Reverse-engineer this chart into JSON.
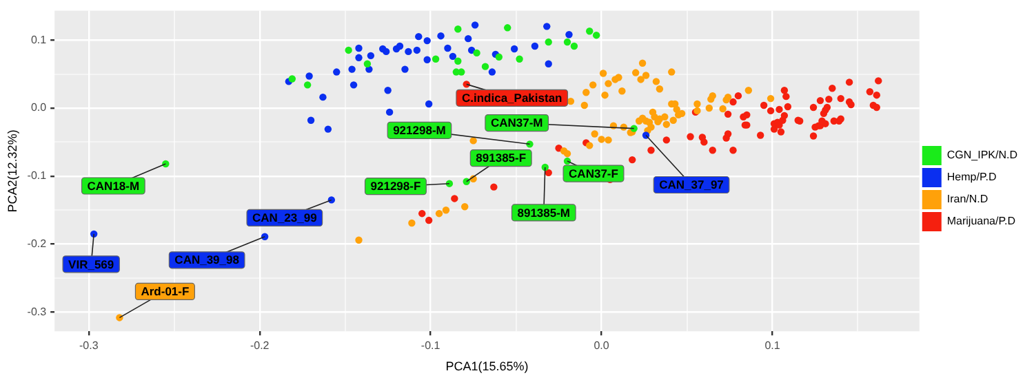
{
  "chart_data": {
    "type": "scatter",
    "xlabel": "PCA1(15.65%)",
    "ylabel": "PCA2(12.32%)",
    "xlim": [
      -0.32,
      0.186
    ],
    "ylim": [
      -0.328,
      0.143
    ],
    "xticks": [
      {
        "value": -0.3,
        "label": "-0.3"
      },
      {
        "value": -0.25,
        "label": null
      },
      {
        "value": -0.2,
        "label": "-0.2"
      },
      {
        "value": -0.15,
        "label": null
      },
      {
        "value": -0.1,
        "label": "-0.1"
      },
      {
        "value": -0.05,
        "label": null
      },
      {
        "value": 0,
        "label": "0.0"
      },
      {
        "value": 0.05,
        "label": null
      },
      {
        "value": 0.1,
        "label": "0.1"
      },
      {
        "value": 0.15,
        "label": null
      }
    ],
    "yticks": [
      {
        "value": -0.3,
        "label": "-0.3"
      },
      {
        "value": -0.25,
        "label": null
      },
      {
        "value": -0.2,
        "label": "-0.2"
      },
      {
        "value": -0.15,
        "label": null
      },
      {
        "value": -0.1,
        "label": "-0.1"
      },
      {
        "value": -0.05,
        "label": null
      },
      {
        "value": 0,
        "label": "0.0"
      },
      {
        "value": 0.05,
        "label": null
      },
      {
        "value": 0.1,
        "label": "0.1"
      }
    ],
    "grid": true,
    "legend": "right",
    "marker": "circle",
    "series": [
      {
        "name": "CGN_IPK/N.D",
        "color": "#1aeb1a",
        "x": [
          -0.255,
          -0.181,
          -0.172,
          -0.148,
          -0.137,
          -0.084,
          -0.097,
          -0.084,
          -0.085,
          -0.082,
          -0.073,
          -0.068,
          -0.06,
          -0.055,
          -0.048,
          -0.031,
          -0.02,
          -0.016,
          -0.007,
          -0.003,
          -0.042,
          -0.079,
          -0.089,
          -0.033,
          -0.02,
          0.019
        ],
        "values": [
          -0.082,
          0.043,
          0.034,
          0.085,
          0.065,
          0.116,
          0.072,
          0.069,
          0.053,
          0.053,
          0.081,
          0.061,
          0.075,
          0.118,
          0.072,
          0.097,
          0.097,
          0.091,
          0.113,
          0.107,
          -0.053,
          -0.108,
          -0.111,
          -0.087,
          -0.078,
          -0.03
        ]
      },
      {
        "name": "Hemp/P.D",
        "color": "#0a2ff0",
        "x": [
          -0.183,
          -0.171,
          -0.163,
          -0.17,
          -0.16,
          -0.155,
          -0.146,
          -0.145,
          -0.142,
          -0.142,
          -0.158,
          -0.197,
          -0.297,
          -0.135,
          -0.136,
          -0.128,
          -0.126,
          -0.12,
          -0.118,
          -0.113,
          -0.108,
          -0.107,
          -0.102,
          -0.094,
          -0.09,
          -0.087,
          -0.078,
          -0.074,
          -0.076,
          -0.102,
          -0.115,
          -0.125,
          -0.124,
          -0.101,
          -0.064,
          -0.062,
          -0.051,
          -0.039,
          -0.032,
          -0.019,
          -0.031,
          0.026
        ],
        "values": [
          0.039,
          0.047,
          0.016,
          -0.018,
          -0.031,
          0.053,
          0.057,
          0.034,
          0.088,
          0.074,
          -0.135,
          -0.189,
          -0.185,
          0.077,
          0.057,
          0.087,
          0.083,
          0.087,
          0.091,
          0.083,
          0.085,
          0.105,
          0.099,
          0.106,
          0.088,
          0.076,
          0.102,
          0.122,
          0.085,
          0.071,
          0.057,
          0.026,
          -0.006,
          0.006,
          0.053,
          0.079,
          0.087,
          0.091,
          0.12,
          0.108,
          0.065,
          -0.04
        ]
      },
      {
        "name": "Iran/N.D",
        "color": "#ffa10a",
        "x": [
          -0.282,
          -0.142,
          -0.075,
          -0.075,
          -0.08,
          -0.091,
          -0.095,
          -0.111,
          -0.022,
          -0.02,
          -0.018,
          -0.01,
          -0.009,
          -0.005,
          0.001,
          0.004,
          0.002,
          0.008,
          0.01,
          0.012,
          0.02,
          0.024,
          0.023,
          0.026,
          0.032,
          0.034,
          0.041,
          0.041,
          0.043,
          0.044,
          0.047,
          0.045,
          -0.004,
          0.0,
          0.004,
          -0.007,
          0.007,
          0.013,
          0.017,
          0.018,
          0.022,
          0.024,
          0.026,
          0.028,
          0.03,
          0.031,
          0.029,
          0.033,
          0.034,
          0.037,
          0.038,
          0.042,
          0.027,
          0.056,
          0.056,
          0.063,
          0.064,
          0.065,
          0.071,
          0.073,
          0.074,
          0.086,
          0.099
        ],
        "values": [
          -0.308,
          -0.194,
          -0.048,
          -0.104,
          -0.145,
          -0.15,
          -0.155,
          -0.169,
          -0.063,
          -0.067,
          0.01,
          0.004,
          0.023,
          0.034,
          0.051,
          0.036,
          0.019,
          0.042,
          0.045,
          0.025,
          0.052,
          0.066,
          0.042,
          0.048,
          0.039,
          0.028,
          0.053,
          0.006,
          0.006,
          -0.002,
          -0.008,
          -0.01,
          -0.038,
          -0.046,
          -0.047,
          -0.055,
          -0.026,
          -0.028,
          -0.036,
          -0.035,
          -0.019,
          -0.015,
          -0.019,
          -0.021,
          -0.006,
          -0.013,
          -0.028,
          -0.02,
          -0.016,
          -0.013,
          -0.024,
          -0.018,
          -0.033,
          0.006,
          -0.004,
          0.0,
          0.013,
          0.018,
          -0.001,
          0.012,
          0.016,
          0.026,
          0.014
        ]
      },
      {
        "name": "Marijuana/P.D",
        "color": "#f5200f",
        "x": [
          -0.079,
          -0.025,
          -0.031,
          -0.063,
          -0.086,
          -0.105,
          -0.101,
          0.005,
          -0.009,
          0.018,
          0.029,
          0.038,
          0.052,
          0.059,
          0.06,
          0.065,
          0.073,
          0.074,
          0.077,
          0.055,
          0.074,
          0.077,
          0.08,
          0.083,
          0.085,
          0.084,
          0.085,
          0.093,
          0.095,
          0.099,
          0.101,
          0.101,
          0.103,
          0.104,
          0.104,
          0.105,
          0.106,
          0.107,
          0.108,
          0.107,
          0.109,
          0.115,
          0.116,
          0.124,
          0.128,
          0.131,
          0.13,
          0.132,
          0.133,
          0.135,
          0.14,
          0.145,
          0.145,
          0.146,
          0.157,
          0.159,
          0.161,
          0.161,
          0.162,
          0.124,
          0.125,
          0.127,
          0.128,
          0.129,
          0.131,
          0.136,
          0.139,
          0.14
        ],
        "values": [
          0.035,
          -0.059,
          -0.095,
          -0.116,
          -0.133,
          -0.155,
          -0.165,
          -0.105,
          -0.051,
          -0.076,
          -0.062,
          -0.047,
          -0.042,
          -0.043,
          -0.05,
          -0.062,
          -0.044,
          -0.038,
          -0.062,
          -0.006,
          -0.009,
          0.009,
          0.018,
          -0.013,
          -0.01,
          -0.025,
          -0.025,
          -0.04,
          0.004,
          -0.004,
          -0.031,
          -0.023,
          -0.021,
          -0.002,
          -0.025,
          -0.035,
          -0.018,
          0.026,
          0.017,
          -0.011,
          0.002,
          -0.018,
          -0.019,
          0.001,
          0.011,
          -0.003,
          -0.008,
          0.001,
          0.013,
          0.029,
          0.014,
          0.038,
          0.009,
          0.005,
          0.024,
          0.004,
          0.001,
          0.019,
          0.04,
          -0.041,
          -0.028,
          -0.026,
          -0.026,
          -0.019,
          -0.023,
          -0.019,
          -0.019,
          -0.016
        ]
      }
    ],
    "annotations": [
      {
        "text": "CAN18-M",
        "x": -0.255,
        "y": -0.082
      },
      {
        "text": "VIR_569",
        "x": -0.297,
        "y": -0.185
      },
      {
        "text": "Ard-01-F",
        "x": -0.282,
        "y": -0.308
      },
      {
        "text": "CAN_23_99",
        "x": -0.158,
        "y": -0.135
      },
      {
        "text": "CAN_39_98",
        "x": -0.197,
        "y": -0.189
      },
      {
        "text": "C.indica_Pakistan",
        "x": -0.079,
        "y": 0.035
      },
      {
        "text": "921298-M",
        "x": -0.042,
        "y": -0.053
      },
      {
        "text": "CAN37-M",
        "x": 0.019,
        "y": -0.03
      },
      {
        "text": "891385-F",
        "x": -0.079,
        "y": -0.108
      },
      {
        "text": "921298-F",
        "x": -0.089,
        "y": -0.111
      },
      {
        "text": "891385-M",
        "x": -0.033,
        "y": -0.087
      },
      {
        "text": "CAN37-F",
        "x": -0.02,
        "y": -0.078
      },
      {
        "text": "CAN_37_97",
        "x": 0.026,
        "y": -0.04
      }
    ]
  }
}
